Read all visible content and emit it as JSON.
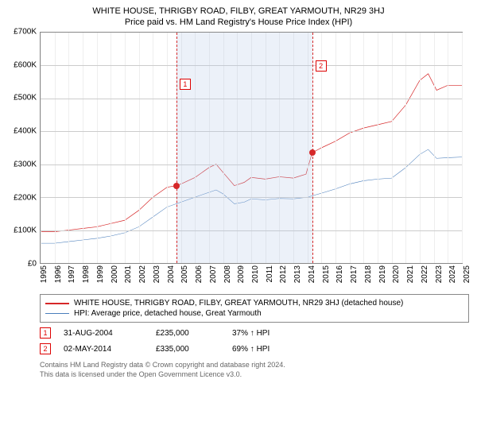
{
  "titles": {
    "line1": "WHITE HOUSE, THRIGBY ROAD, FILBY, GREAT YARMOUTH, NR29 3HJ",
    "line2": "Price paid vs. HM Land Registry's House Price Index (HPI)"
  },
  "chart": {
    "type": "line",
    "background": "#ffffff",
    "grid_color": "#cccccc",
    "border_color": "#888888",
    "x": {
      "min": 1995,
      "max": 2025,
      "ticks": [
        1995,
        1996,
        1997,
        1998,
        1999,
        2000,
        2001,
        2002,
        2003,
        2004,
        2005,
        2006,
        2007,
        2008,
        2009,
        2010,
        2011,
        2012,
        2013,
        2014,
        2015,
        2016,
        2017,
        2018,
        2019,
        2020,
        2021,
        2022,
        2023,
        2024,
        2025
      ],
      "label_fontsize": 10
    },
    "y": {
      "min": 0,
      "max": 700,
      "ticks": [
        0,
        100,
        200,
        300,
        400,
        500,
        600,
        700
      ],
      "tick_labels": [
        "£0",
        "£100K",
        "£200K",
        "£300K",
        "£400K",
        "£500K",
        "£600K",
        "£700K"
      ],
      "label_fontsize": 10
    },
    "shade_band": {
      "from": 2004.67,
      "to": 2014.34,
      "color": "rgba(180,200,230,0.25)"
    },
    "series": [
      {
        "name": "WHITE HOUSE, THRIGBY ROAD, FILBY, GREAT YARMOUTH, NR29 3HJ (detached house)",
        "color": "#d62728",
        "width": 2,
        "points": [
          [
            1995,
            95
          ],
          [
            1996,
            95
          ],
          [
            1997,
            100
          ],
          [
            1998,
            105
          ],
          [
            1999,
            110
          ],
          [
            2000,
            120
          ],
          [
            2001,
            130
          ],
          [
            2002,
            160
          ],
          [
            2003,
            200
          ],
          [
            2004,
            230
          ],
          [
            2004.67,
            235
          ],
          [
            2005,
            240
          ],
          [
            2006,
            260
          ],
          [
            2007,
            290
          ],
          [
            2007.5,
            300
          ],
          [
            2008,
            275
          ],
          [
            2008.8,
            235
          ],
          [
            2009.5,
            245
          ],
          [
            2010,
            260
          ],
          [
            2011,
            255
          ],
          [
            2012,
            262
          ],
          [
            2013,
            258
          ],
          [
            2013.9,
            270
          ],
          [
            2014.34,
            335
          ],
          [
            2015,
            350
          ],
          [
            2016,
            370
          ],
          [
            2017,
            395
          ],
          [
            2018,
            410
          ],
          [
            2019,
            420
          ],
          [
            2020,
            430
          ],
          [
            2021,
            480
          ],
          [
            2022,
            555
          ],
          [
            2022.6,
            575
          ],
          [
            2023.2,
            525
          ],
          [
            2024,
            540
          ],
          [
            2025,
            540
          ]
        ]
      },
      {
        "name": "HPI: Average price, detached house, Great Yarmouth",
        "color": "#4a7ebb",
        "width": 1.5,
        "points": [
          [
            1995,
            60
          ],
          [
            1996,
            60
          ],
          [
            1997,
            65
          ],
          [
            1998,
            70
          ],
          [
            1999,
            75
          ],
          [
            2000,
            82
          ],
          [
            2001,
            92
          ],
          [
            2002,
            110
          ],
          [
            2003,
            140
          ],
          [
            2004,
            170
          ],
          [
            2005,
            185
          ],
          [
            2006,
            200
          ],
          [
            2007,
            215
          ],
          [
            2007.5,
            222
          ],
          [
            2008,
            210
          ],
          [
            2008.8,
            180
          ],
          [
            2009.5,
            185
          ],
          [
            2010,
            195
          ],
          [
            2011,
            192
          ],
          [
            2012,
            196
          ],
          [
            2013,
            195
          ],
          [
            2014,
            200
          ],
          [
            2015,
            212
          ],
          [
            2016,
            225
          ],
          [
            2017,
            240
          ],
          [
            2018,
            250
          ],
          [
            2019,
            255
          ],
          [
            2020,
            258
          ],
          [
            2021,
            290
          ],
          [
            2022,
            330
          ],
          [
            2022.6,
            345
          ],
          [
            2023.2,
            318
          ],
          [
            2024,
            320
          ],
          [
            2025,
            322
          ]
        ]
      }
    ],
    "markers": [
      {
        "label": "1",
        "x": 2004.67,
        "y": 235,
        "box_top_pct": 20,
        "color": "#d62728"
      },
      {
        "label": "2",
        "x": 2014.34,
        "y": 335,
        "box_top_pct": 12,
        "color": "#d62728"
      }
    ]
  },
  "legend": {
    "items": [
      {
        "label": "WHITE HOUSE, THRIGBY ROAD, FILBY, GREAT YARMOUTH, NR29 3HJ (detached house)",
        "color": "#d62728",
        "width": 2
      },
      {
        "label": "HPI: Average price, detached house, Great Yarmouth",
        "color": "#4a7ebb",
        "width": 1.5
      }
    ]
  },
  "events": [
    {
      "num": "1",
      "date": "31-AUG-2004",
      "price": "£235,000",
      "hpi": "37% ↑ HPI"
    },
    {
      "num": "2",
      "date": "02-MAY-2014",
      "price": "£335,000",
      "hpi": "69% ↑ HPI"
    }
  ],
  "footer": {
    "line1": "Contains HM Land Registry data © Crown copyright and database right 2024.",
    "line2": "This data is licensed under the Open Government Licence v3.0."
  }
}
